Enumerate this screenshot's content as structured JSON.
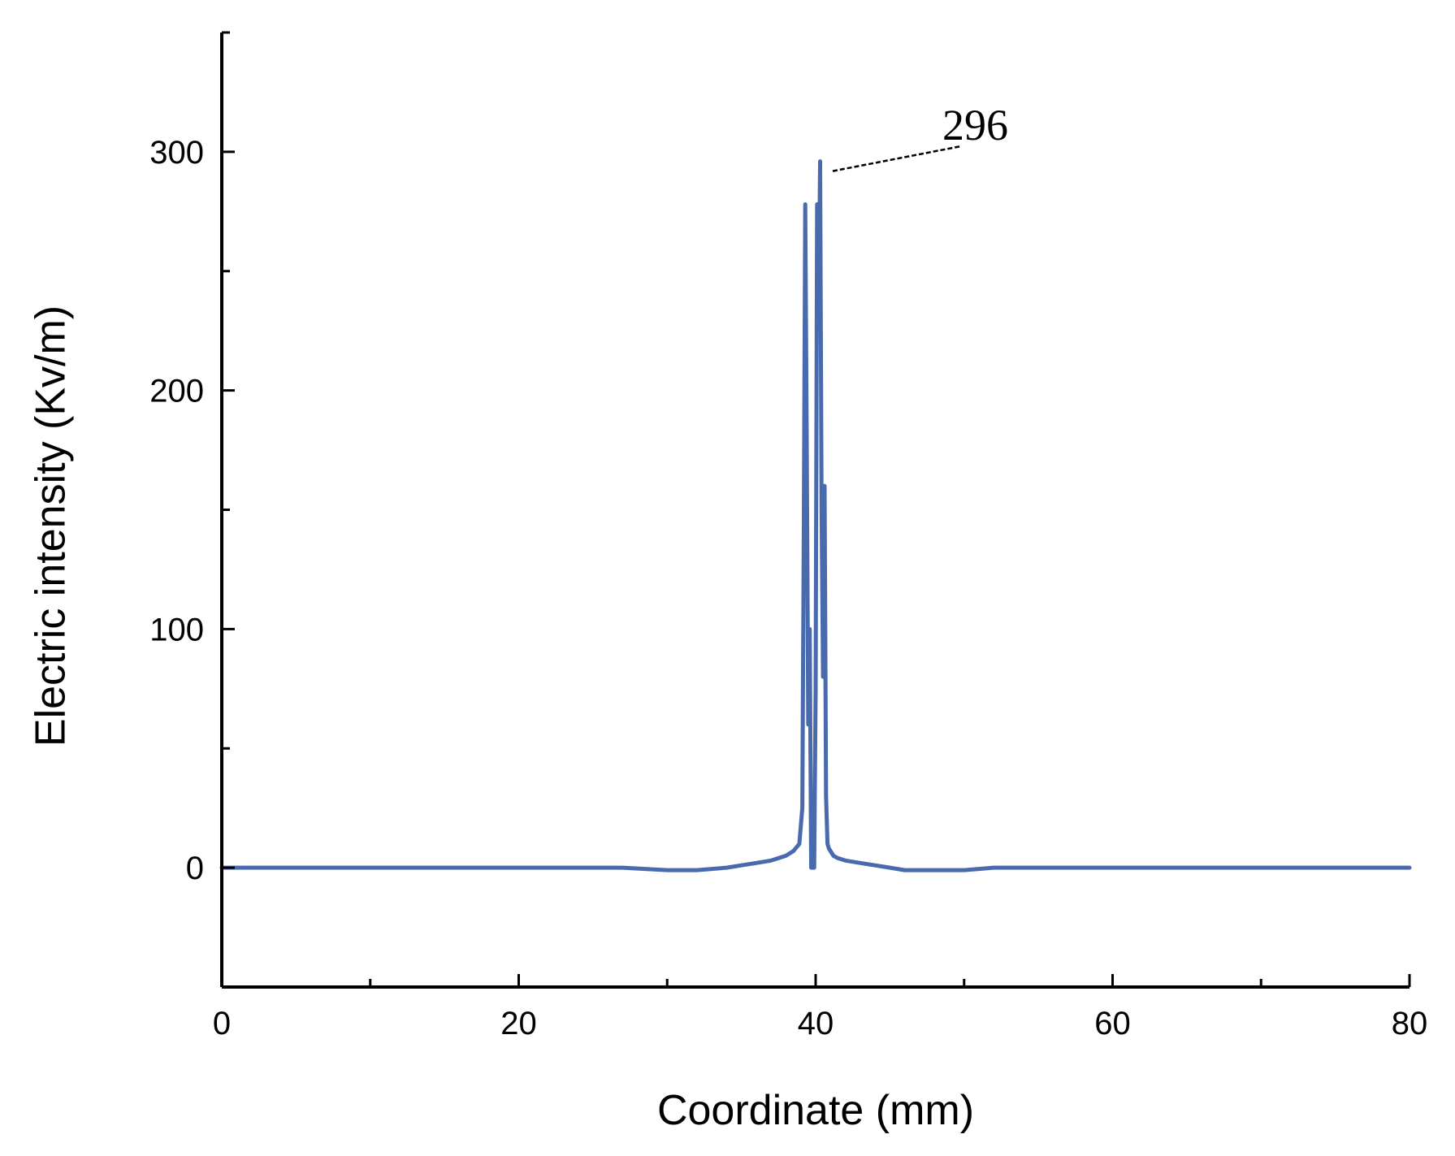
{
  "chart_data": {
    "type": "line",
    "title": "",
    "xlabel": "Coordinate (mm)",
    "ylabel": "Electric intensity (Kv/m)",
    "xlim": [
      0,
      80
    ],
    "ylim": [
      -50,
      350
    ],
    "x_ticks": [
      0,
      20,
      40,
      60,
      80
    ],
    "y_ticks": [
      0,
      100,
      200,
      300
    ],
    "x_minor_step": 10,
    "y_minor_step": 50,
    "grid": false,
    "line_color": "#4a6aae",
    "annotation": {
      "text": "296",
      "x": 40.6,
      "y": 296
    },
    "series": [
      {
        "x": [
          0,
          5,
          10,
          15,
          20,
          25,
          27,
          30,
          32,
          34,
          35,
          36,
          37,
          38,
          38.5,
          38.9,
          39.1,
          39.2,
          39.3,
          39.4,
          39.5,
          39.6,
          39.7,
          39.8,
          39.9,
          40.0,
          40.1,
          40.2,
          40.3,
          40.4,
          40.5,
          40.6,
          40.7,
          40.8,
          40.9,
          41.0,
          41.1,
          41.2,
          41.5,
          42,
          43,
          44,
          45,
          46,
          48,
          50,
          52,
          53,
          55,
          60,
          65,
          70,
          75,
          80
        ],
        "y": [
          0,
          0,
          0,
          0,
          0,
          0,
          0,
          -1,
          -1,
          0,
          1,
          2,
          3,
          5,
          7,
          10,
          25,
          140,
          278,
          180,
          60,
          100,
          0,
          0,
          0,
          75,
          278,
          230,
          296,
          150,
          80,
          160,
          30,
          10,
          8,
          7,
          6,
          5,
          4,
          3,
          2,
          1,
          0,
          -1,
          -1,
          -1,
          0,
          0,
          0,
          0,
          0,
          0,
          0,
          0
        ]
      }
    ]
  }
}
